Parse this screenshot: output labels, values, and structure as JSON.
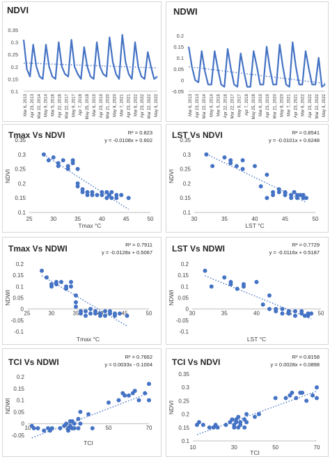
{
  "colors": {
    "series": "#4472c4",
    "axis": "#bfbfbf",
    "text": "#404040"
  },
  "chart_data": [
    {
      "id": "ndvi_ts",
      "type": "line",
      "title": "NDVI",
      "ylim": [
        0.1,
        0.35
      ],
      "yticks": [
        "0.35",
        "0.3",
        "0.25",
        "0.2",
        "0.15",
        "0.1"
      ],
      "xtick_labels": [
        "Mar 6, 2013",
        "Apr 23, 2013",
        "Mar 22, 2014",
        "May 9, 2014",
        "Mar 5, 2016",
        "Apr 22, 2016",
        "Mar 22, 2017",
        "May 9, 2017",
        "Apr 7, 2018",
        "May 25, 2018",
        "Mar 6, 2019",
        "Apr 23, 2019",
        "Mar 21, 2020",
        "May 8, 2020",
        "Mar 7, 2021",
        "Apr 23, 2021",
        "Mar 6, 2022",
        "Apr 23, 2022",
        "Mar 22, 2022",
        "May 9, 2022"
      ],
      "values": [
        0.31,
        0.19,
        0.16,
        0.29,
        0.2,
        0.16,
        0.15,
        0.29,
        0.2,
        0.16,
        0.15,
        0.3,
        0.2,
        0.17,
        0.16,
        0.31,
        0.2,
        0.17,
        0.15,
        0.28,
        0.2,
        0.16,
        0.15,
        0.3,
        0.2,
        0.17,
        0.16,
        0.32,
        0.22,
        0.17,
        0.15,
        0.33,
        0.22,
        0.17,
        0.15,
        0.3,
        0.2,
        0.16,
        0.15,
        0.26,
        0.2,
        0.15,
        0.16
      ],
      "trend": [
        0.215,
        0.195
      ]
    },
    {
      "id": "ndwi_ts",
      "type": "line",
      "title": "NDWI",
      "ylim": [
        -0.05,
        0.2
      ],
      "yticks": [
        "0.2",
        "0.15",
        "0.1",
        "0.05",
        "0",
        "-0.05"
      ],
      "xtick_labels": [
        "Mar 6, 2013",
        "Apr 23, 2013",
        "Mar 22, 2014",
        "May 9, 2014",
        "Mar 5, 2016",
        "Apr 22, 2016",
        "Mar 22, 2017",
        "May 9, 2017",
        "Apr 7, 2018",
        "May 25, 2018",
        "Mar 6, 2019",
        "Apr 23, 2019",
        "Mar 21, 2020",
        "May 8, 2020",
        "Mar 7, 2021",
        "Apr 23, 2021",
        "Mar 6, 2022",
        "Apr 23, 2022",
        "Mar 22, 2022",
        "May 9, 2022"
      ],
      "values": [
        0.15,
        0.06,
        0.0,
        -0.01,
        0.13,
        0.04,
        -0.02,
        -0.02,
        0.13,
        0.05,
        -0.02,
        -0.03,
        0.14,
        0.05,
        -0.02,
        -0.03,
        0.12,
        0.04,
        -0.03,
        -0.03,
        0.13,
        0.06,
        -0.02,
        -0.02,
        0.15,
        0.05,
        -0.02,
        -0.02,
        0.16,
        0.06,
        -0.02,
        -0.03,
        0.17,
        0.06,
        -0.02,
        -0.02,
        0.13,
        0.05,
        -0.02,
        -0.02,
        0.1,
        -0.03,
        -0.02
      ],
      "trend": [
        0.06,
        -0.015
      ]
    },
    {
      "id": "tmax_ndvi",
      "type": "scatter",
      "title": "Tmax Vs NDVI",
      "xlabel": "Tmax °C",
      "ylabel": "NDVI",
      "xlim": [
        25,
        50
      ],
      "ylim": [
        0.1,
        0.35
      ],
      "xticks": [
        "25",
        "30",
        "35",
        "40",
        "45",
        "50"
      ],
      "yticks": [
        "0.35",
        "0.3",
        "0.25",
        "0.2",
        "0.15",
        "0.1"
      ],
      "r2": "R² = 0.823",
      "equation": "y = -0.0108x + 0.602",
      "x": [
        28,
        29,
        30,
        31,
        31,
        32,
        33,
        33,
        34,
        34,
        35,
        35,
        35,
        36,
        36,
        37,
        37,
        38,
        38,
        39,
        40,
        40,
        41,
        41,
        41.5,
        42,
        42,
        43,
        43,
        44,
        45.5
      ],
      "y": [
        0.3,
        0.28,
        0.29,
        0.26,
        0.27,
        0.28,
        0.25,
        0.26,
        0.28,
        0.27,
        0.25,
        0.2,
        0.19,
        0.18,
        0.17,
        0.16,
        0.17,
        0.17,
        0.16,
        0.16,
        0.17,
        0.16,
        0.15,
        0.17,
        0.16,
        0.15,
        0.17,
        0.16,
        0.15,
        0.16,
        0.15
      ],
      "trend_x": [
        28,
        45.5
      ]
    },
    {
      "id": "lst_ndvi",
      "type": "scatter",
      "title": "LST Vs NDVI",
      "xlabel": "LST °C",
      "ylabel": "NDVI",
      "xlim": [
        30,
        50
      ],
      "ylim": [
        0.1,
        0.35
      ],
      "xticks": [
        "30",
        "35",
        "40",
        "45",
        "50"
      ],
      "yticks": [
        "0.35",
        "0.3",
        "0.25",
        "0.2",
        "0.15",
        "0.1"
      ],
      "r2": "R² = 0.8541",
      "equation": "y = -0.0101x + 0.6248",
      "x": [
        32,
        33,
        35,
        36,
        36,
        37,
        38,
        38,
        40,
        41,
        42,
        42,
        43,
        43,
        44,
        44,
        45,
        45,
        46,
        46,
        47,
        47,
        48,
        48,
        48.5,
        47.5,
        46.5
      ],
      "y": [
        0.3,
        0.26,
        0.29,
        0.28,
        0.27,
        0.26,
        0.28,
        0.25,
        0.26,
        0.19,
        0.23,
        0.15,
        0.17,
        0.16,
        0.17,
        0.18,
        0.17,
        0.16,
        0.16,
        0.15,
        0.16,
        0.15,
        0.15,
        0.16,
        0.15,
        0.16,
        0.17
      ],
      "trend_x": [
        32,
        48.5
      ]
    },
    {
      "id": "tmax_ndwi",
      "type": "scatter",
      "title": "Tmax Vs NDWI",
      "xlabel": "Tmax °C",
      "ylabel": "NDWI",
      "xlim": [
        25,
        50
      ],
      "ylim": [
        -0.1,
        0.2
      ],
      "xticks": [
        "25",
        "30",
        "35",
        "40",
        "45",
        "50"
      ],
      "yticks": [
        "0.2",
        "0.15",
        "0.1",
        "0.05",
        "0",
        "-0.05",
        "-0.1"
      ],
      "r2": "R² = 0.7911",
      "equation": "y = -0.0128x + 0.5067",
      "x": [
        28,
        29,
        30,
        30,
        31,
        31,
        32,
        33,
        33,
        34,
        34,
        35,
        35,
        35,
        36,
        36,
        37,
        37,
        38,
        38,
        39,
        39,
        40,
        40,
        41,
        41,
        42,
        42,
        43,
        43,
        44,
        45.5
      ],
      "y": [
        0.17,
        0.14,
        0.1,
        0.11,
        0.11,
        0.12,
        0.12,
        0.1,
        0.09,
        0.12,
        0.1,
        0.06,
        0.03,
        0.01,
        -0.01,
        -0.02,
        -0.01,
        -0.03,
        0.0,
        -0.02,
        -0.01,
        -0.02,
        -0.03,
        -0.02,
        -0.01,
        -0.03,
        -0.02,
        -0.01,
        -0.03,
        -0.02,
        -0.02,
        -0.03
      ],
      "trend_x": [
        28,
        45.5
      ]
    },
    {
      "id": "lst_ndwi",
      "type": "scatter",
      "title": "LST Vs NDWI",
      "xlabel": "LST °C",
      "ylabel": "NDWI",
      "xlim": [
        30,
        50
      ],
      "ylim": [
        -0.1,
        0.2
      ],
      "xticks": [
        "30",
        "35",
        "40",
        "45",
        "50"
      ],
      "yticks": [
        "0.2",
        "0.15",
        "0.1",
        "0.05",
        "0",
        "-0.05",
        "-0.1"
      ],
      "r2": "R² = 0.7729",
      "equation": "y = -0.0116x + 0.5187",
      "x": [
        32,
        33,
        35,
        36,
        36,
        37,
        38,
        38,
        40,
        41,
        42,
        42,
        43,
        43,
        44,
        44,
        45,
        45,
        46,
        46,
        47,
        47,
        48,
        48,
        48.5,
        47.5
      ],
      "y": [
        0.17,
        0.1,
        0.14,
        0.12,
        0.11,
        0.09,
        0.11,
        0.1,
        0.12,
        0.02,
        0.06,
        0.0,
        0.0,
        -0.01,
        0.0,
        -0.02,
        -0.01,
        -0.02,
        -0.01,
        -0.03,
        -0.02,
        -0.01,
        -0.02,
        -0.03,
        -0.02,
        -0.03
      ],
      "trend_x": [
        32,
        48.5
      ]
    },
    {
      "id": "tci_ndwi",
      "type": "scatter",
      "title": "TCI Vs NDWI",
      "xlabel": "TCI",
      "ylabel": "NDWI",
      "xlim": [
        10,
        70
      ],
      "ylim": [
        -0.05,
        0.2
      ],
      "xticks": [
        "10",
        "30",
        "50",
        "70"
      ],
      "yticks": [
        "0.2",
        "0.15",
        "0.1",
        "0.05",
        "0",
        "-0.05"
      ],
      "r2": "R² = 0.7662",
      "equation": "y = 0.0033x - 0.1004",
      "x": [
        12,
        13,
        15,
        18,
        20,
        21,
        22,
        26,
        28,
        29,
        30,
        30,
        31,
        31,
        32,
        32,
        33,
        33,
        35,
        35,
        36,
        36,
        40,
        42,
        50,
        55,
        57,
        58,
        60,
        62,
        63,
        65,
        68,
        70,
        70
      ],
      "y": [
        -0.01,
        -0.02,
        -0.02,
        -0.03,
        -0.02,
        -0.03,
        -0.02,
        -0.02,
        -0.01,
        0.0,
        -0.03,
        -0.02,
        -0.01,
        0.01,
        -0.02,
        0.01,
        0.0,
        -0.02,
        0.02,
        -0.02,
        0.05,
        0.0,
        0.04,
        -0.02,
        0.09,
        0.1,
        0.13,
        0.12,
        0.12,
        0.13,
        0.14,
        0.1,
        0.13,
        0.17,
        0.1
      ],
      "trend_x": [
        12,
        70
      ]
    },
    {
      "id": "tci_ndvi",
      "type": "scatter",
      "title": "TCI Vs NDVI",
      "xlabel": "TCI",
      "ylabel": "NDVI",
      "xlim": [
        10,
        70
      ],
      "ylim": [
        0.1,
        0.35
      ],
      "xticks": [
        "10",
        "30",
        "50",
        "70"
      ],
      "yticks": [
        "0.35",
        "0.3",
        "0.25",
        "0.2",
        "0.15",
        "0.1"
      ],
      "r2": "R² = 0.8158",
      "equation": "y = 0.0028x + 0.0898",
      "x": [
        12,
        13,
        15,
        18,
        20,
        21,
        22,
        26,
        28,
        29,
        30,
        30,
        31,
        31,
        32,
        32,
        33,
        33,
        35,
        35,
        36,
        36,
        40,
        42,
        50,
        55,
        57,
        58,
        60,
        62,
        63,
        65,
        68,
        70,
        70
      ],
      "y": [
        0.16,
        0.17,
        0.16,
        0.15,
        0.15,
        0.16,
        0.15,
        0.16,
        0.17,
        0.18,
        0.16,
        0.15,
        0.17,
        0.18,
        0.15,
        0.19,
        0.17,
        0.16,
        0.18,
        0.15,
        0.2,
        0.17,
        0.19,
        0.2,
        0.26,
        0.26,
        0.27,
        0.28,
        0.26,
        0.28,
        0.28,
        0.25,
        0.27,
        0.3,
        0.26
      ],
      "trend_x": [
        12,
        70
      ]
    }
  ]
}
